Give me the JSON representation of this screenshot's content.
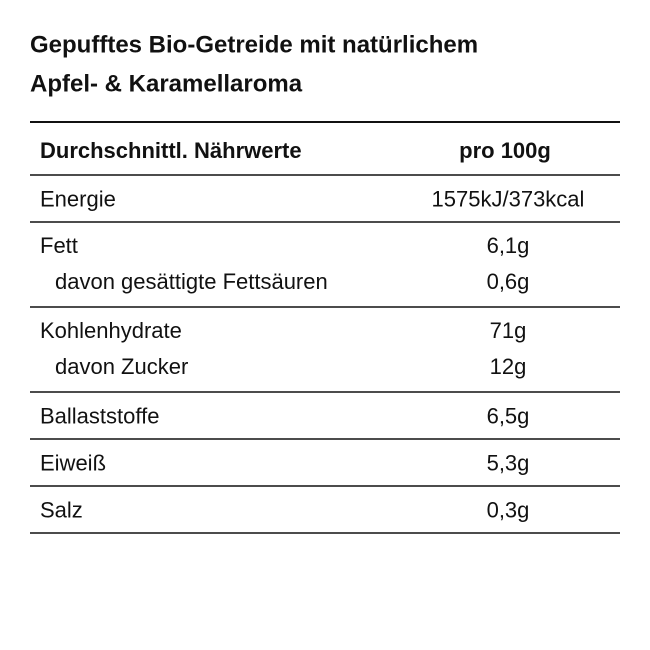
{
  "title": {
    "lines": [
      "Gepufftes Bio-Getreide mit natürlichem",
      "Apfel- & Karamellaroma"
    ]
  },
  "table": {
    "header": [
      "Durchschnittl. Nährwerte",
      "pro 100g"
    ],
    "groups": [
      {
        "rows": [
          [
            "Energie",
            "1575kJ/373kcal"
          ]
        ]
      },
      {
        "rows": [
          [
            "Fett",
            "6,1g"
          ],
          [
            "davon gesättigte Fettsäuren",
            "0,6g"
          ]
        ]
      },
      {
        "rows": [
          [
            "Kohlenhydrate",
            "71g"
          ],
          [
            "davon Zucker",
            "12g"
          ]
        ]
      },
      {
        "rows": [
          [
            "Ballaststoffe",
            "6,5g"
          ]
        ]
      },
      {
        "rows": [
          [
            "Eiweiß",
            "5,3g"
          ]
        ]
      },
      {
        "rows": [
          [
            "Salz",
            "0,3g"
          ]
        ]
      }
    ]
  }
}
